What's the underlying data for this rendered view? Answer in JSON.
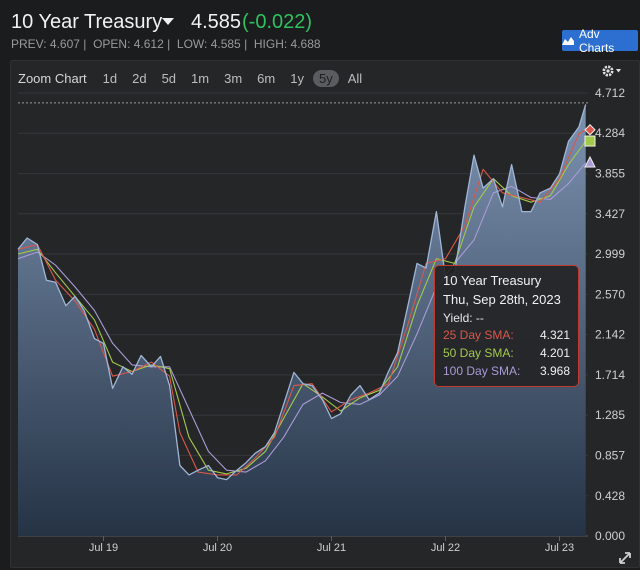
{
  "header": {
    "title": "10 Year Treasury",
    "price": "4.585",
    "change": "(-0.022)",
    "prev": "PREV: 4.607",
    "open": "OPEN: 4.612",
    "low": "LOW: 4.585",
    "high": "HIGH: 4.688",
    "adv_label": "Adv Charts"
  },
  "zoom": {
    "label": "Zoom Chart",
    "buttons": [
      "1d",
      "2d",
      "5d",
      "1m",
      "3m",
      "6m",
      "1y",
      "5y",
      "All"
    ],
    "active": "5y"
  },
  "tooltip": {
    "title": "10 Year Treasury",
    "date": "Thu, Sep 28th, 2023",
    "yield_label": "Yield: --",
    "sma25_label": "25 Day SMA:",
    "sma25_value": "4.321",
    "sma50_label": "50 Day SMA:",
    "sma50_value": "4.201",
    "sma100_label": "100 Day SMA:",
    "sma100_value": "3.968"
  },
  "colors": {
    "background": "#1b1c1e",
    "panel": "#252628",
    "area_top": "#7d93b2",
    "area_bottom": "#253345",
    "price_line": "#9fb6d6",
    "sma25": "#d9574a",
    "sma50": "#a3c94a",
    "sma100": "#a99bd6",
    "change_negative": "#2ec25e",
    "tooltip_border": "#c0392b",
    "accent_button": "#2c6fd1"
  },
  "chart_data": {
    "type": "area",
    "y_ticks": [
      "4.712",
      "4.284",
      "3.855",
      "3.427",
      "2.999",
      "2.570",
      "2.142",
      "1.714",
      "1.285",
      "0.857",
      "0.428",
      "0.000"
    ],
    "ylim": [
      0,
      4.712
    ],
    "x_ticks": [
      {
        "label": "Jul 19",
        "t": 2019.5
      },
      {
        "label": "Jul 20",
        "t": 2020.5
      },
      {
        "label": "Jul 21",
        "t": 2021.5
      },
      {
        "label": "Jul 22",
        "t": 2022.5
      },
      {
        "label": "Jul 23",
        "t": 2023.5
      }
    ],
    "xlim": [
      2018.75,
      2023.75
    ],
    "reference_value": 4.607,
    "grid": true,
    "series": [
      {
        "name": "10 Year Treasury",
        "role": "yield",
        "points": [
          [
            2018.75,
            3.05
          ],
          [
            2018.83,
            3.17
          ],
          [
            2018.92,
            3.1
          ],
          [
            2019.0,
            2.72
          ],
          [
            2019.08,
            2.7
          ],
          [
            2019.17,
            2.45
          ],
          [
            2019.25,
            2.55
          ],
          [
            2019.33,
            2.4
          ],
          [
            2019.42,
            2.1
          ],
          [
            2019.5,
            2.05
          ],
          [
            2019.58,
            1.57
          ],
          [
            2019.67,
            1.8
          ],
          [
            2019.75,
            1.72
          ],
          [
            2019.83,
            1.92
          ],
          [
            2019.92,
            1.8
          ],
          [
            2020.0,
            1.91
          ],
          [
            2020.08,
            1.6
          ],
          [
            2020.17,
            0.75
          ],
          [
            2020.25,
            0.65
          ],
          [
            2020.33,
            0.7
          ],
          [
            2020.42,
            0.75
          ],
          [
            2020.5,
            0.62
          ],
          [
            2020.58,
            0.6
          ],
          [
            2020.67,
            0.7
          ],
          [
            2020.75,
            0.78
          ],
          [
            2020.83,
            0.88
          ],
          [
            2020.92,
            0.95
          ],
          [
            2021.0,
            1.1
          ],
          [
            2021.08,
            1.4
          ],
          [
            2021.17,
            1.74
          ],
          [
            2021.25,
            1.62
          ],
          [
            2021.33,
            1.6
          ],
          [
            2021.42,
            1.45
          ],
          [
            2021.5,
            1.25
          ],
          [
            2021.58,
            1.3
          ],
          [
            2021.67,
            1.5
          ],
          [
            2021.75,
            1.6
          ],
          [
            2021.83,
            1.45
          ],
          [
            2021.92,
            1.52
          ],
          [
            2022.0,
            1.75
          ],
          [
            2022.08,
            1.95
          ],
          [
            2022.17,
            2.45
          ],
          [
            2022.25,
            2.9
          ],
          [
            2022.33,
            2.85
          ],
          [
            2022.42,
            3.45
          ],
          [
            2022.5,
            2.75
          ],
          [
            2022.58,
            2.8
          ],
          [
            2022.67,
            3.5
          ],
          [
            2022.75,
            4.05
          ],
          [
            2022.83,
            3.7
          ],
          [
            2022.92,
            3.8
          ],
          [
            2023.0,
            3.5
          ],
          [
            2023.08,
            3.95
          ],
          [
            2023.17,
            3.45
          ],
          [
            2023.25,
            3.45
          ],
          [
            2023.33,
            3.65
          ],
          [
            2023.42,
            3.7
          ],
          [
            2023.5,
            3.85
          ],
          [
            2023.58,
            4.2
          ],
          [
            2023.67,
            4.35
          ],
          [
            2023.73,
            4.59
          ]
        ]
      },
      {
        "name": "25 Day SMA",
        "role": "sma25",
        "points": [
          [
            2018.75,
            3.05
          ],
          [
            2018.92,
            3.1
          ],
          [
            2019.08,
            2.72
          ],
          [
            2019.25,
            2.5
          ],
          [
            2019.42,
            2.2
          ],
          [
            2019.58,
            1.7
          ],
          [
            2019.75,
            1.75
          ],
          [
            2019.92,
            1.85
          ],
          [
            2020.08,
            1.7
          ],
          [
            2020.17,
            1.1
          ],
          [
            2020.33,
            0.68
          ],
          [
            2020.5,
            0.65
          ],
          [
            2020.67,
            0.65
          ],
          [
            2020.83,
            0.83
          ],
          [
            2021.0,
            1.05
          ],
          [
            2021.17,
            1.6
          ],
          [
            2021.33,
            1.62
          ],
          [
            2021.5,
            1.32
          ],
          [
            2021.67,
            1.45
          ],
          [
            2021.83,
            1.52
          ],
          [
            2022.0,
            1.62
          ],
          [
            2022.17,
            2.25
          ],
          [
            2022.33,
            2.9
          ],
          [
            2022.5,
            2.95
          ],
          [
            2022.67,
            3.3
          ],
          [
            2022.83,
            3.9
          ],
          [
            2023.0,
            3.65
          ],
          [
            2023.17,
            3.6
          ],
          [
            2023.33,
            3.55
          ],
          [
            2023.5,
            3.8
          ],
          [
            2023.67,
            4.28
          ],
          [
            2023.73,
            4.32
          ]
        ]
      },
      {
        "name": "50 Day SMA",
        "role": "sma50",
        "points": [
          [
            2018.75,
            3.0
          ],
          [
            2018.92,
            3.05
          ],
          [
            2019.08,
            2.8
          ],
          [
            2019.25,
            2.55
          ],
          [
            2019.42,
            2.3
          ],
          [
            2019.58,
            1.85
          ],
          [
            2019.75,
            1.75
          ],
          [
            2019.92,
            1.82
          ],
          [
            2020.08,
            1.78
          ],
          [
            2020.25,
            1.05
          ],
          [
            2020.42,
            0.7
          ],
          [
            2020.58,
            0.66
          ],
          [
            2020.75,
            0.72
          ],
          [
            2020.92,
            0.9
          ],
          [
            2021.08,
            1.25
          ],
          [
            2021.25,
            1.62
          ],
          [
            2021.42,
            1.48
          ],
          [
            2021.58,
            1.33
          ],
          [
            2021.75,
            1.47
          ],
          [
            2021.92,
            1.55
          ],
          [
            2022.08,
            1.8
          ],
          [
            2022.25,
            2.45
          ],
          [
            2022.42,
            2.95
          ],
          [
            2022.58,
            2.9
          ],
          [
            2022.75,
            3.5
          ],
          [
            2022.92,
            3.8
          ],
          [
            2023.08,
            3.62
          ],
          [
            2023.25,
            3.55
          ],
          [
            2023.42,
            3.62
          ],
          [
            2023.58,
            3.95
          ],
          [
            2023.73,
            4.2
          ]
        ]
      },
      {
        "name": "100 Day SMA",
        "role": "sma100",
        "points": [
          [
            2018.75,
            2.95
          ],
          [
            2018.92,
            3.02
          ],
          [
            2019.08,
            2.88
          ],
          [
            2019.25,
            2.65
          ],
          [
            2019.42,
            2.4
          ],
          [
            2019.58,
            2.05
          ],
          [
            2019.75,
            1.82
          ],
          [
            2019.92,
            1.8
          ],
          [
            2020.08,
            1.8
          ],
          [
            2020.25,
            1.35
          ],
          [
            2020.42,
            0.9
          ],
          [
            2020.58,
            0.7
          ],
          [
            2020.75,
            0.68
          ],
          [
            2020.92,
            0.8
          ],
          [
            2021.08,
            1.05
          ],
          [
            2021.25,
            1.4
          ],
          [
            2021.42,
            1.52
          ],
          [
            2021.58,
            1.42
          ],
          [
            2021.75,
            1.4
          ],
          [
            2021.92,
            1.5
          ],
          [
            2022.08,
            1.7
          ],
          [
            2022.25,
            2.15
          ],
          [
            2022.42,
            2.65
          ],
          [
            2022.58,
            2.9
          ],
          [
            2022.75,
            3.15
          ],
          [
            2022.92,
            3.65
          ],
          [
            2023.08,
            3.72
          ],
          [
            2023.25,
            3.6
          ],
          [
            2023.42,
            3.58
          ],
          [
            2023.58,
            3.75
          ],
          [
            2023.73,
            3.97
          ]
        ]
      }
    ],
    "end_markers": [
      {
        "role": "sma25",
        "value": 4.321,
        "shape": "diamond"
      },
      {
        "role": "sma50",
        "value": 4.201,
        "shape": "square"
      },
      {
        "role": "sma100",
        "value": 3.968,
        "shape": "triangle"
      }
    ]
  }
}
